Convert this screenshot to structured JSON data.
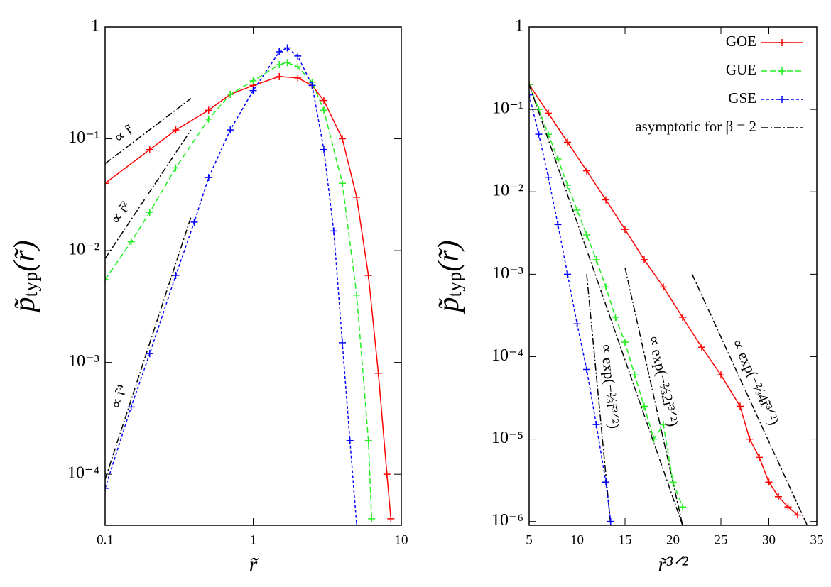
{
  "chart_data": [
    {
      "type": "line",
      "log_x": true,
      "log_y": true,
      "xlabel": "r̃",
      "ylabel": {
        "main": "p̃",
        "sub": "typ",
        "arg": "(r̃)"
      },
      "xlim": [
        0.1,
        10
      ],
      "ylim": [
        3.5e-05,
        1
      ],
      "xticks": [
        0.1,
        1,
        10
      ],
      "yticks": [
        1,
        {
          "value": 0.1,
          "label": "10⁻¹"
        },
        {
          "value": 0.01,
          "label": "10⁻²"
        },
        {
          "value": 0.001,
          "label": "10⁻³"
        },
        {
          "value": 0.0001,
          "label": "10⁻⁴"
        }
      ],
      "series": [
        {
          "name": "GOE",
          "color": "#ff0000",
          "style": "solid",
          "x": [
            0.1,
            0.2,
            0.3,
            0.5,
            0.7,
            1,
            1.5,
            2,
            2.5,
            3,
            4,
            5,
            6,
            7,
            8,
            8.5
          ],
          "values": [
            0.04,
            0.08,
            0.12,
            0.18,
            0.25,
            0.3,
            0.36,
            0.35,
            0.3,
            0.22,
            0.1,
            0.03,
            0.006,
            0.0008,
            0.0001,
            4e-05
          ]
        },
        {
          "name": "GUE",
          "color": "#22ee22",
          "style": "dashed",
          "x": [
            0.1,
            0.15,
            0.2,
            0.3,
            0.5,
            0.7,
            1,
            1.5,
            1.7,
            2,
            2.5,
            3,
            4,
            5,
            6,
            6.3
          ],
          "values": [
            0.0055,
            0.012,
            0.022,
            0.055,
            0.15,
            0.25,
            0.33,
            0.46,
            0.48,
            0.44,
            0.32,
            0.18,
            0.04,
            0.004,
            0.0002,
            4e-05
          ]
        },
        {
          "name": "GSE",
          "color": "#0000ff",
          "style": "dotted",
          "x": [
            0.1,
            0.15,
            0.2,
            0.3,
            0.4,
            0.5,
            0.7,
            1,
            1.5,
            1.7,
            2,
            2.5,
            3,
            3.5,
            4,
            4.5,
            5
          ],
          "values": [
            7.5e-05,
            0.0004,
            0.0012,
            0.006,
            0.018,
            0.045,
            0.12,
            0.27,
            0.6,
            0.65,
            0.55,
            0.3,
            0.08,
            0.015,
            0.0015,
            0.0002,
            3.5e-05
          ]
        }
      ],
      "guides": [
        {
          "label": "∝ r̃",
          "x": [
            0.1,
            0.38
          ],
          "values": [
            0.06,
            0.23
          ]
        },
        {
          "label": "∝ r̃²",
          "x": [
            0.1,
            0.38
          ],
          "values": [
            0.0085,
            0.12
          ]
        },
        {
          "label": "∝ r̃⁴",
          "x": [
            0.1,
            0.38
          ],
          "values": [
            9e-05,
            0.02
          ]
        }
      ]
    },
    {
      "type": "line",
      "log_x": false,
      "log_y": true,
      "xlabel": "r̃³ᐟ²",
      "ylabel": {
        "main": "p̃",
        "sub": "typ",
        "arg": "(r̃)"
      },
      "xlim": [
        5,
        35
      ],
      "ylim": [
        9e-07,
        1
      ],
      "xticks": [
        5,
        10,
        15,
        20,
        25,
        30,
        35
      ],
      "yticks": [
        1,
        {
          "value": 0.1,
          "label": "10⁻¹"
        },
        {
          "value": 0.01,
          "label": "10⁻²"
        },
        {
          "value": 0.001,
          "label": "10⁻³"
        },
        {
          "value": 0.0001,
          "label": "10⁻⁴"
        },
        {
          "value": 1e-05,
          "label": "10⁻⁵"
        },
        {
          "value": 1e-06,
          "label": "10⁻⁶"
        }
      ],
      "legend": "top-right",
      "series": [
        {
          "name": "GOE",
          "color": "#ff0000",
          "style": "solid",
          "x": [
            5,
            7,
            9,
            11,
            13,
            15,
            17,
            19,
            21,
            23,
            25,
            27,
            28,
            29,
            30,
            31,
            32,
            33
          ],
          "values": [
            0.2,
            0.09,
            0.04,
            0.018,
            0.008,
            0.0035,
            0.0015,
            0.0007,
            0.0003,
            0.00013,
            6e-05,
            2.5e-05,
            1e-05,
            6e-06,
            3e-06,
            2e-06,
            1.5e-06,
            1.2e-06
          ]
        },
        {
          "name": "GUE",
          "color": "#22ee22",
          "style": "dashed",
          "x": [
            5,
            6,
            7,
            8,
            9,
            10,
            11,
            12,
            13,
            14,
            15,
            16,
            17,
            18,
            19,
            20,
            21
          ],
          "values": [
            0.2,
            0.1,
            0.05,
            0.025,
            0.012,
            0.006,
            0.003,
            0.0015,
            0.0007,
            0.0003,
            0.00015,
            6e-05,
            2.5e-05,
            1e-05,
            1.5e-05,
            3e-06,
            1.5e-06
          ]
        },
        {
          "name": "GSE",
          "color": "#0000ff",
          "style": "dotted",
          "x": [
            5,
            6,
            7,
            8,
            9,
            10,
            11,
            12,
            13,
            13.5
          ],
          "values": [
            0.15,
            0.05,
            0.015,
            0.004,
            0.001,
            0.00025,
            7e-05,
            1.5e-05,
            3e-06,
            1e-06
          ]
        },
        {
          "name": "asymptotic for β = 2",
          "color": "#000000",
          "style": "dashdot",
          "markers": false,
          "x": [
            5,
            21
          ],
          "values": [
            0.2,
            9e-07
          ]
        }
      ],
      "guides": [
        {
          "label": "∝ exp(−⅔r̃³ᐟ²)",
          "x": [
            11,
            13.5
          ],
          "values": [
            0.001,
            9e-07
          ]
        },
        {
          "label": "∝ exp(−⅔2r̃³ᐟ²)",
          "x": [
            15,
            21
          ],
          "values": [
            0.0012,
            9e-07
          ]
        },
        {
          "label": "∝ exp(−⅔4r̃³ᐟ²)",
          "x": [
            22,
            34
          ],
          "values": [
            0.001,
            9e-07
          ]
        }
      ]
    }
  ]
}
